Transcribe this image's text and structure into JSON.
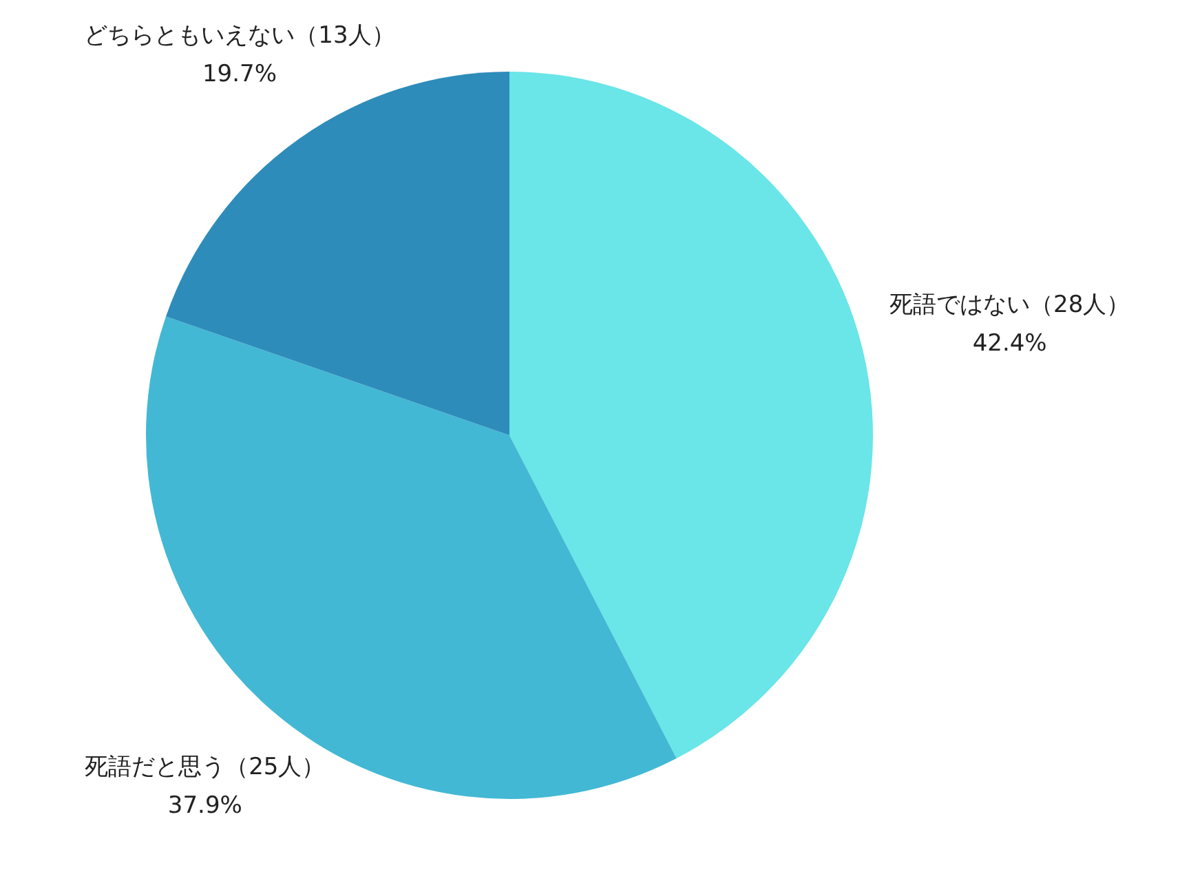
{
  "chart_data": {
    "type": "pie",
    "categories": [
      "死語ではない（28人）",
      "死語だと思う（25人）",
      "どちらともいえない（13人）"
    ],
    "values": [
      42.4,
      37.9,
      19.7
    ],
    "value_labels": [
      "42.4%",
      "37.9%",
      "19.7%"
    ],
    "colors": [
      "#6ae5e8",
      "#42b8d4",
      "#2e8cba"
    ],
    "legend": false
  }
}
